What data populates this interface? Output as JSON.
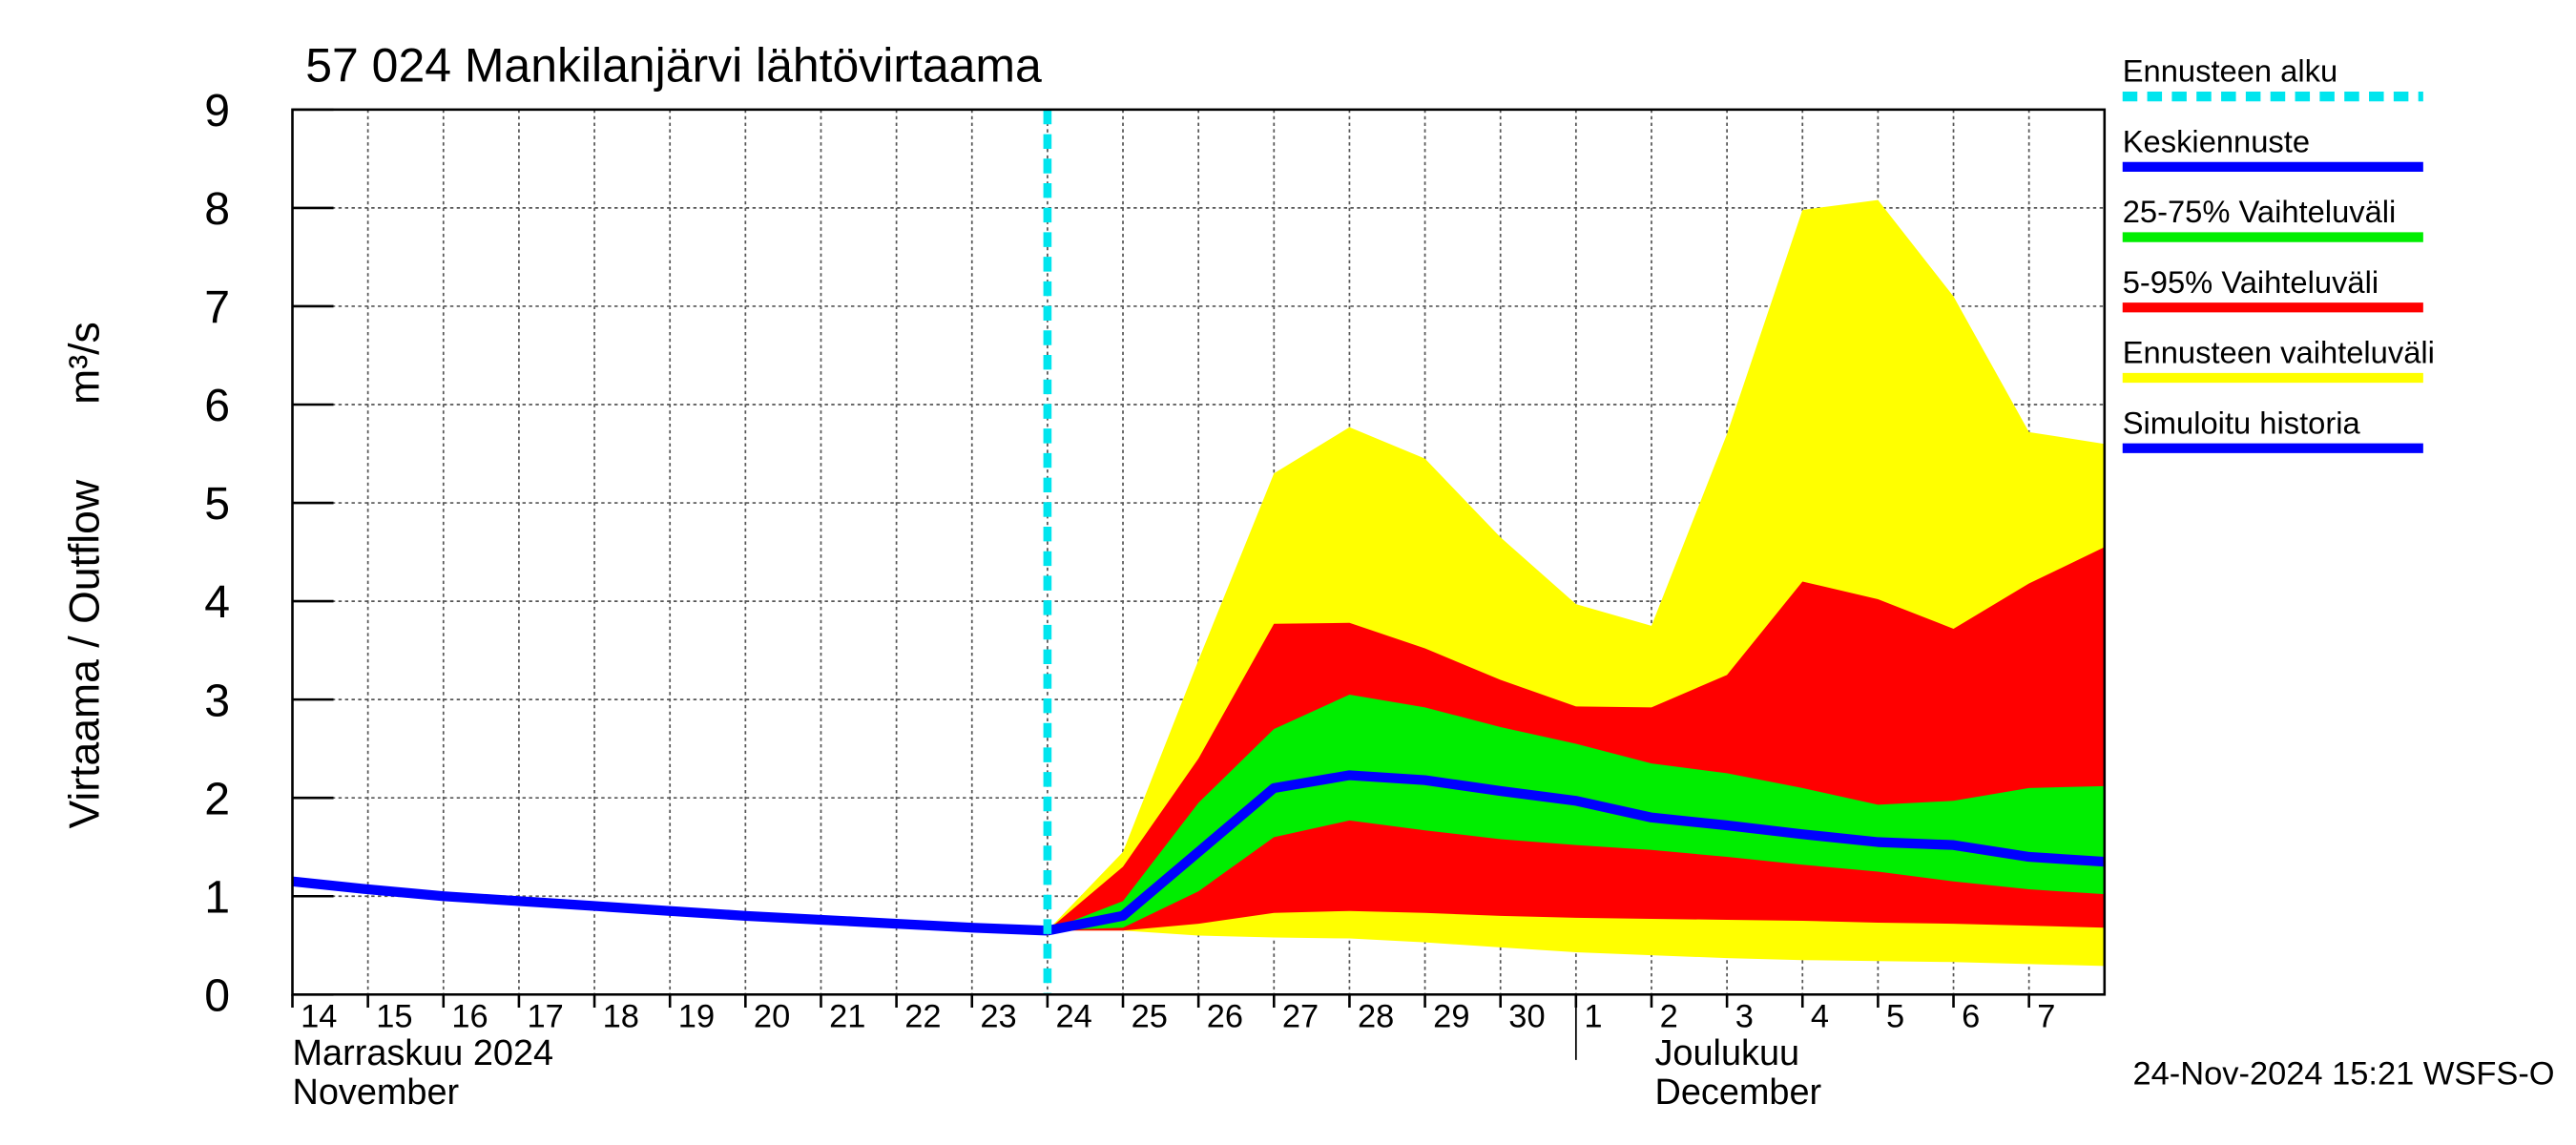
{
  "chart_data": {
    "type": "line",
    "title": "57 024 Mankilanjärvi lähtövirtaama",
    "y_label": "Virtaama / Outflow",
    "y_unit": "m³/s",
    "month_labels": [
      {
        "x": "2024-11-14",
        "lines": [
          "Marraskuu 2024",
          "November"
        ]
      },
      {
        "x": "2024-12-01",
        "lines": [
          "Joulukuu",
          "December"
        ]
      }
    ],
    "footer": "24-Nov-2024 15:21 WSFS-O",
    "xlim": [
      "2024-11-14",
      "2024-12-08"
    ],
    "xticks": [
      {
        "value": "2024-11-14",
        "label": "14"
      },
      {
        "value": "2024-11-15",
        "label": "15"
      },
      {
        "value": "2024-11-16",
        "label": "16"
      },
      {
        "value": "2024-11-17",
        "label": "17"
      },
      {
        "value": "2024-11-18",
        "label": "18"
      },
      {
        "value": "2024-11-19",
        "label": "19"
      },
      {
        "value": "2024-11-20",
        "label": "20"
      },
      {
        "value": "2024-11-21",
        "label": "21"
      },
      {
        "value": "2024-11-22",
        "label": "22"
      },
      {
        "value": "2024-11-23",
        "label": "23"
      },
      {
        "value": "2024-11-24",
        "label": "24"
      },
      {
        "value": "2024-11-25",
        "label": "25"
      },
      {
        "value": "2024-11-26",
        "label": "26"
      },
      {
        "value": "2024-11-27",
        "label": "27"
      },
      {
        "value": "2024-11-28",
        "label": "28"
      },
      {
        "value": "2024-11-29",
        "label": "29"
      },
      {
        "value": "2024-11-30",
        "label": "30"
      },
      {
        "value": "2024-12-01",
        "label": "1"
      },
      {
        "value": "2024-12-02",
        "label": "2"
      },
      {
        "value": "2024-12-03",
        "label": "3"
      },
      {
        "value": "2024-12-04",
        "label": "4"
      },
      {
        "value": "2024-12-05",
        "label": "5"
      },
      {
        "value": "2024-12-06",
        "label": "6"
      },
      {
        "value": "2024-12-07",
        "label": "7"
      }
    ],
    "ylim": [
      0,
      9
    ],
    "yticks": [
      0,
      1,
      2,
      3,
      4,
      5,
      6,
      7,
      8,
      9
    ],
    "grid": true,
    "series": [
      {
        "name": "Ennusteen alku",
        "color": "#00e5ee",
        "x": [
          "2024-11-24"
        ]
      },
      {
        "name": "Keskiennuste",
        "color": "#0000ff",
        "x": [
          "2024-11-24",
          "2024-11-25",
          "2024-11-26",
          "2024-11-27",
          "2024-11-28",
          "2024-11-29",
          "2024-11-30",
          "2024-12-01",
          "2024-12-02",
          "2024-12-03",
          "2024-12-04",
          "2024-12-05",
          "2024-12-06",
          "2024-12-07",
          "2024-12-08"
        ],
        "values": [
          0.65,
          0.8,
          1.45,
          2.1,
          2.23,
          2.18,
          2.07,
          1.97,
          1.8,
          1.72,
          1.63,
          1.55,
          1.52,
          1.4,
          1.35
        ]
      },
      {
        "name": "25-75% Vaihteluväli",
        "color": "#00ee00",
        "x": [
          "2024-11-24",
          "2024-11-25",
          "2024-11-26",
          "2024-11-27",
          "2024-11-28",
          "2024-11-29",
          "2024-11-30",
          "2024-12-01",
          "2024-12-02",
          "2024-12-03",
          "2024-12-04",
          "2024-12-05",
          "2024-12-06",
          "2024-12-07",
          "2024-12-08"
        ],
        "low": [
          0.65,
          0.68,
          1.05,
          1.6,
          1.77,
          1.67,
          1.58,
          1.52,
          1.47,
          1.4,
          1.32,
          1.25,
          1.15,
          1.07,
          1.02
        ],
        "high": [
          0.65,
          0.95,
          1.95,
          2.7,
          3.05,
          2.92,
          2.72,
          2.55,
          2.35,
          2.25,
          2.1,
          1.93,
          1.97,
          2.1,
          2.12
        ]
      },
      {
        "name": "5-95% Vaihteluväli",
        "color": "#ff0000",
        "x": [
          "2024-11-24",
          "2024-11-25",
          "2024-11-26",
          "2024-11-27",
          "2024-11-28",
          "2024-11-29",
          "2024-11-30",
          "2024-12-01",
          "2024-12-02",
          "2024-12-03",
          "2024-12-04",
          "2024-12-05",
          "2024-12-06",
          "2024-12-07",
          "2024-12-08"
        ],
        "low": [
          0.65,
          0.65,
          0.72,
          0.83,
          0.85,
          0.83,
          0.8,
          0.78,
          0.77,
          0.76,
          0.75,
          0.73,
          0.72,
          0.7,
          0.68
        ],
        "high": [
          0.65,
          1.3,
          2.4,
          3.77,
          3.78,
          3.52,
          3.2,
          2.93,
          2.92,
          3.25,
          4.2,
          4.02,
          3.72,
          4.18,
          4.55
        ]
      },
      {
        "name": "Ennusteen vaihteluväli",
        "color": "#ffff00",
        "x": [
          "2024-11-24",
          "2024-11-25",
          "2024-11-26",
          "2024-11-27",
          "2024-11-28",
          "2024-11-29",
          "2024-11-30",
          "2024-12-01",
          "2024-12-02",
          "2024-12-03",
          "2024-12-04",
          "2024-12-05",
          "2024-12-06",
          "2024-12-07",
          "2024-12-08"
        ],
        "low": [
          0.65,
          0.65,
          0.6,
          0.58,
          0.57,
          0.53,
          0.48,
          0.43,
          0.4,
          0.37,
          0.35,
          0.34,
          0.33,
          0.31,
          0.29
        ],
        "high": [
          0.65,
          1.45,
          3.4,
          5.3,
          5.77,
          5.45,
          4.65,
          3.97,
          3.75,
          5.7,
          7.98,
          8.08,
          7.1,
          5.72,
          5.6
        ]
      },
      {
        "name": "Simuloitu historia",
        "color": "#0000ff",
        "x": [
          "2024-11-14",
          "2024-11-15",
          "2024-11-16",
          "2024-11-17",
          "2024-11-18",
          "2024-11-19",
          "2024-11-20",
          "2024-11-21",
          "2024-11-22",
          "2024-11-23",
          "2024-11-24"
        ],
        "values": [
          1.15,
          1.07,
          1.0,
          0.95,
          0.9,
          0.85,
          0.8,
          0.76,
          0.72,
          0.68,
          0.65
        ]
      }
    ]
  }
}
